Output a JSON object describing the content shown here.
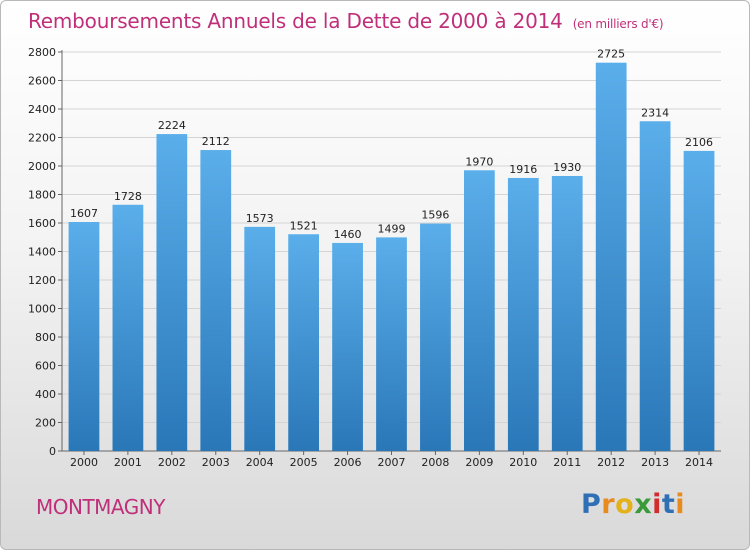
{
  "header": {
    "title": "Remboursements Annuels de la Dette de 2000 à 2014",
    "unit": "(en milliers d'€)"
  },
  "footer": {
    "city": "MONTMAGNY",
    "logo_letters": [
      "P",
      "r",
      "o",
      "x",
      "i",
      "t",
      "i"
    ],
    "logo_colors": [
      "#2f6fb5",
      "#e98a1e",
      "#e3b21a",
      "#3a9a3a",
      "#d22c2c",
      "#2f6fb5",
      "#e98a1e"
    ]
  },
  "colors": {
    "bar_top": "#5aaeea",
    "bar_bottom": "#2a77b8",
    "title": "#c0307a"
  },
  "chart_data": {
    "type": "bar",
    "title": "Remboursements Annuels de la Dette de 2000 à 2014",
    "xlabel": "",
    "ylabel": "",
    "ylim": [
      0,
      2800
    ],
    "yticks": [
      0,
      200,
      400,
      600,
      800,
      1000,
      1200,
      1400,
      1600,
      1800,
      2000,
      2200,
      2400,
      2600,
      2800
    ],
    "grid": true,
    "categories": [
      "2000",
      "2001",
      "2002",
      "2003",
      "2004",
      "2005",
      "2006",
      "2007",
      "2008",
      "2009",
      "2010",
      "2011",
      "2012",
      "2013",
      "2014"
    ],
    "values": [
      1607,
      1728,
      2224,
      2112,
      1573,
      1521,
      1460,
      1499,
      1596,
      1970,
      1916,
      1930,
      2725,
      2314,
      2106
    ]
  }
}
